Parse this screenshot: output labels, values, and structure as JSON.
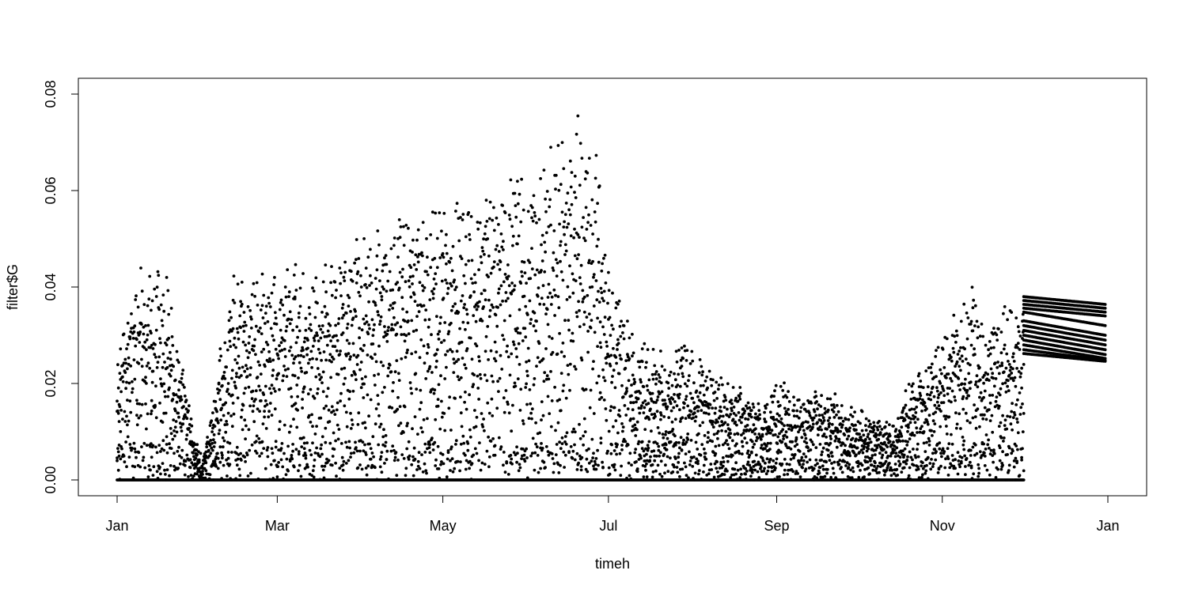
{
  "chart_data": {
    "type": "scatter",
    "title": "",
    "xlabel": "timeh",
    "ylabel": "filter$G",
    "x_range": [
      "2017-01-01",
      "2018-01-01"
    ],
    "ylim": [
      -0.0036,
      0.0832
    ],
    "grid": false,
    "legend": "none",
    "x_ticks": [
      {
        "date": "2017-01-01",
        "label": "Jan"
      },
      {
        "date": "2017-03-01",
        "label": "Mar"
      },
      {
        "date": "2017-05-01",
        "label": "May"
      },
      {
        "date": "2017-07-01",
        "label": "Jul"
      },
      {
        "date": "2017-09-01",
        "label": "Sep"
      },
      {
        "date": "2017-11-01",
        "label": "Nov"
      },
      {
        "date": "2018-01-01",
        "label": "Jan"
      }
    ],
    "y_ticks": [
      {
        "value": 0.0,
        "label": "0.00"
      },
      {
        "value": 0.02,
        "label": "0.02"
      },
      {
        "value": 0.04,
        "label": "0.04"
      },
      {
        "value": 0.06,
        "label": "0.06"
      },
      {
        "value": 0.08,
        "label": "0.08"
      }
    ],
    "observed_range": [
      "2017-01-01",
      "2017-12-01"
    ],
    "forecast_range": [
      "2017-12-01",
      "2017-12-31"
    ],
    "daily_peak": [
      [
        "2017-01-01",
        0.028
      ],
      [
        "2017-01-08",
        0.043
      ],
      [
        "2017-01-15",
        0.049
      ],
      [
        "2017-01-20",
        0.042
      ],
      [
        "2017-01-26",
        0.022
      ],
      [
        "2017-02-01",
        0.002
      ],
      [
        "2017-02-07",
        0.026
      ],
      [
        "2017-02-13",
        0.044
      ],
      [
        "2017-02-20",
        0.043
      ],
      [
        "2017-02-26",
        0.045
      ],
      [
        "2017-03-05",
        0.047
      ],
      [
        "2017-03-12",
        0.045
      ],
      [
        "2017-03-19",
        0.047
      ],
      [
        "2017-03-26",
        0.052
      ],
      [
        "2017-04-02",
        0.052
      ],
      [
        "2017-04-09",
        0.056
      ],
      [
        "2017-04-16",
        0.058
      ],
      [
        "2017-04-23",
        0.056
      ],
      [
        "2017-05-01",
        0.06
      ],
      [
        "2017-05-08",
        0.062
      ],
      [
        "2017-05-15",
        0.06
      ],
      [
        "2017-05-22",
        0.064
      ],
      [
        "2017-05-29",
        0.066
      ],
      [
        "2017-06-05",
        0.068
      ],
      [
        "2017-06-12",
        0.074
      ],
      [
        "2017-06-19",
        0.078
      ],
      [
        "2017-06-26",
        0.073
      ],
      [
        "2017-07-01",
        0.05
      ],
      [
        "2017-07-08",
        0.034
      ],
      [
        "2017-07-15",
        0.03
      ],
      [
        "2017-07-22",
        0.028
      ],
      [
        "2017-07-29",
        0.03
      ],
      [
        "2017-08-05",
        0.026
      ],
      [
        "2017-08-12",
        0.022
      ],
      [
        "2017-08-19",
        0.02
      ],
      [
        "2017-08-26",
        0.016
      ],
      [
        "2017-09-02",
        0.022
      ],
      [
        "2017-09-09",
        0.018
      ],
      [
        "2017-09-16",
        0.02
      ],
      [
        "2017-09-23",
        0.018
      ],
      [
        "2017-09-30",
        0.016
      ],
      [
        "2017-10-07",
        0.014
      ],
      [
        "2017-10-14",
        0.012
      ],
      [
        "2017-10-21",
        0.024
      ],
      [
        "2017-10-28",
        0.026
      ],
      [
        "2017-11-04",
        0.036
      ],
      [
        "2017-11-11",
        0.042
      ],
      [
        "2017-11-18",
        0.032
      ],
      [
        "2017-11-25",
        0.04
      ],
      [
        "2017-12-01",
        0.038
      ]
    ],
    "forecast_lines": [
      [
        0.038,
        0.0364
      ],
      [
        0.0372,
        0.0356
      ],
      [
        0.0364,
        0.0348
      ],
      [
        0.0356,
        0.034
      ],
      [
        0.0348,
        0.032
      ],
      [
        0.033,
        0.03
      ],
      [
        0.032,
        0.029
      ],
      [
        0.031,
        0.028
      ],
      [
        0.03,
        0.027
      ],
      [
        0.029,
        0.026
      ],
      [
        0.028,
        0.0252
      ],
      [
        0.027,
        0.0248
      ],
      [
        0.0262,
        0.0246
      ]
    ]
  }
}
